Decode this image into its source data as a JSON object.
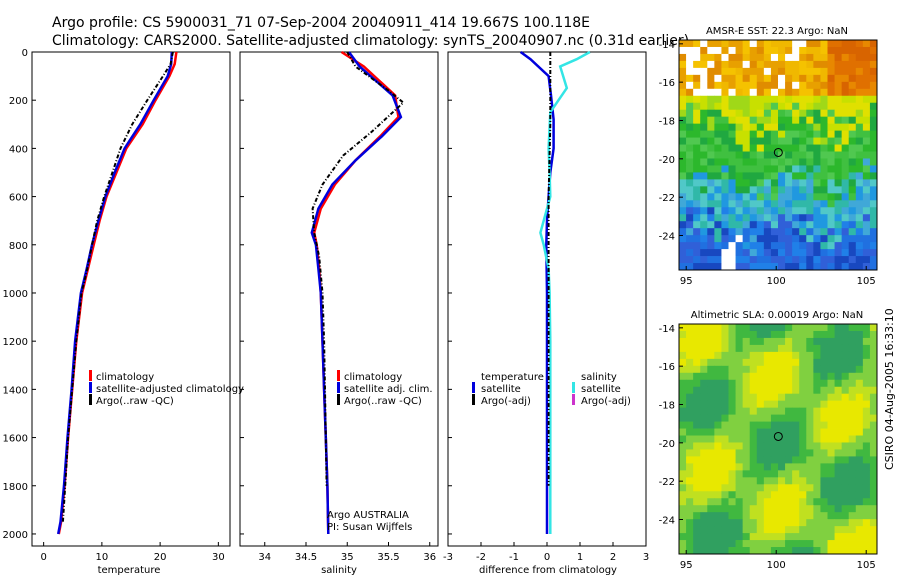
{
  "header": {
    "line1": "Argo profile: CS 5900031_71 07-Sep-2004 20040911_414 19.667S 100.118E",
    "line2": "Climatology: CARS2000. Satellite-adjusted climatology: synTS_20040907.nc (0.31d earlier)"
  },
  "side_label": "CSIRO 04-Aug-2005 16:33:10",
  "colors": {
    "climatology": "#ff0000",
    "satellite": "#0000dd",
    "argo": "#000000",
    "sal_sat": "#33e5e5",
    "sal_argo": "#cc33cc"
  },
  "chart_data": [
    {
      "type": "line",
      "id": "temperature",
      "xlabel": "temperature",
      "ylabel": "",
      "xlim": [
        -2,
        32
      ],
      "ylim": [
        2050,
        0
      ],
      "xticks": [
        0,
        10,
        20,
        30
      ],
      "yticks": [
        0,
        200,
        400,
        600,
        800,
        1000,
        1200,
        1400,
        1600,
        1800,
        2000
      ],
      "legend": [
        "climatology",
        "satellite-adjusted climatology",
        "Argo(..raw -QC)"
      ],
      "series": [
        {
          "name": "climatology",
          "color": "#ff0000",
          "dash": false,
          "x": [
            22.8,
            22.5,
            21.6,
            19.2,
            17.0,
            14.2,
            12.5,
            10.8,
            9.6,
            8.6,
            7.6,
            6.6,
            5.6,
            4.9,
            4.2,
            3.6,
            3.0,
            2.6
          ],
          "y": [
            0,
            50,
            100,
            200,
            300,
            400,
            500,
            600,
            700,
            800,
            900,
            1000,
            1200,
            1400,
            1600,
            1800,
            1950,
            2000
          ]
        },
        {
          "name": "satellite-adjusted climatology",
          "color": "#0000dd",
          "dash": false,
          "x": [
            22.0,
            21.9,
            21.3,
            18.9,
            16.6,
            13.9,
            12.2,
            10.6,
            9.4,
            8.3,
            7.4,
            6.4,
            5.4,
            4.8,
            4.1,
            3.5,
            2.9,
            2.5
          ],
          "y": [
            0,
            50,
            100,
            200,
            300,
            400,
            500,
            600,
            700,
            800,
            900,
            1000,
            1200,
            1400,
            1600,
            1800,
            1950,
            2000
          ]
        },
        {
          "name": "Argo(..raw -QC)",
          "color": "#000000",
          "dash": true,
          "x": [
            22.2,
            21.8,
            20.5,
            17.8,
            15.2,
            13.2,
            11.8,
            10.4,
            9.2,
            8.3,
            7.5,
            6.5,
            5.6,
            4.9,
            4.2,
            3.7,
            3.3
          ],
          "y": [
            0,
            50,
            100,
            200,
            300,
            400,
            500,
            600,
            700,
            800,
            900,
            1000,
            1200,
            1400,
            1600,
            1800,
            1950
          ]
        }
      ]
    },
    {
      "type": "line",
      "id": "salinity",
      "xlabel": "salinity",
      "ylabel": "",
      "xlim": [
        33.7,
        36.1
      ],
      "ylim": [
        2050,
        0
      ],
      "xticks": [
        34,
        34.5,
        35,
        35.5,
        36
      ],
      "yticks": [
        0,
        200,
        400,
        600,
        800,
        1000,
        1200,
        1400,
        1600,
        1800,
        2000
      ],
      "legend": [
        "climatology",
        "satellite adj. clim.",
        "Argo(..raw -QC)"
      ],
      "annotation": [
        "Argo AUSTRALIA",
        "PI: Susan Wijffels"
      ],
      "series": [
        {
          "name": "climatology",
          "color": "#ff0000",
          "dash": false,
          "x": [
            34.93,
            35.2,
            35.58,
            35.62,
            35.4,
            35.1,
            34.85,
            34.68,
            34.6,
            34.63,
            34.66,
            34.68,
            34.7,
            34.72,
            34.74,
            34.76,
            34.77
          ],
          "y": [
            0,
            60,
            180,
            270,
            350,
            450,
            550,
            650,
            750,
            800,
            900,
            1000,
            1200,
            1400,
            1600,
            1800,
            2000
          ]
        },
        {
          "name": "satellite adj. clim.",
          "color": "#0000dd",
          "dash": false,
          "x": [
            35.02,
            35.15,
            35.55,
            35.65,
            35.42,
            35.1,
            34.82,
            34.65,
            34.57,
            34.62,
            34.65,
            34.68,
            34.7,
            34.72,
            34.74,
            34.76,
            34.77
          ],
          "y": [
            0,
            60,
            180,
            270,
            350,
            450,
            550,
            650,
            750,
            800,
            900,
            1000,
            1200,
            1400,
            1600,
            1800,
            2000
          ]
        },
        {
          "name": "Argo(..raw -QC)",
          "color": "#000000",
          "dash": true,
          "x": [
            35.0,
            35.1,
            35.5,
            35.68,
            35.3,
            34.95,
            34.7,
            34.58,
            34.6,
            34.66,
            34.7,
            34.72,
            34.73,
            34.74,
            34.75
          ],
          "y": [
            0,
            60,
            160,
            210,
            330,
            430,
            550,
            650,
            750,
            850,
            1000,
            1200,
            1400,
            1600,
            1800
          ]
        }
      ]
    },
    {
      "type": "line",
      "id": "difference",
      "xlabel": "difference from climatology",
      "ylabel": "",
      "xlim": [
        -3,
        3
      ],
      "ylim": [
        2050,
        0
      ],
      "xticks": [
        -3,
        -2,
        -1,
        0,
        1,
        2,
        3
      ],
      "yticks": [
        0,
        200,
        400,
        600,
        800,
        1000,
        1200,
        1400,
        1600,
        1800,
        2000
      ],
      "legend_left": {
        "title": "temperature",
        "items": [
          "satellite",
          "Argo(-adj)"
        ]
      },
      "legend_right": {
        "title": "salinity",
        "items": [
          "satellite",
          "Argo(-adj)"
        ]
      },
      "series": [
        {
          "name": "temperature satellite",
          "color": "#0000dd",
          "dash": false,
          "x": [
            -0.8,
            -0.5,
            0.05,
            0.12,
            0.2,
            0.2,
            0.1,
            0.05,
            0.0,
            -0.02,
            0.0,
            0.0,
            0.0,
            0.0,
            0.0
          ],
          "y": [
            0,
            30,
            100,
            180,
            280,
            400,
            500,
            600,
            700,
            800,
            1000,
            1200,
            1400,
            1600,
            2000
          ]
        },
        {
          "name": "salinity satellite",
          "color": "#33e5e5",
          "dash": false,
          "x": [
            1.3,
            0.9,
            0.4,
            0.6,
            0.1,
            0.05,
            0.08,
            0.1,
            -0.2,
            -0.1,
            0.05,
            0.08,
            0.1,
            0.1,
            0.1
          ],
          "y": [
            0,
            30,
            60,
            150,
            250,
            400,
            500,
            600,
            750,
            800,
            900,
            1000,
            1200,
            1600,
            2000
          ]
        },
        {
          "name": "Argo(-adj)",
          "color": "#000000",
          "dash": true,
          "x": [
            0.1,
            0.1,
            0.05,
            0.05,
            0.05,
            0.05,
            0.05
          ],
          "y": [
            0,
            300,
            600,
            900,
            1200,
            1500,
            1800
          ]
        }
      ]
    },
    {
      "type": "heatmap",
      "id": "sst",
      "title": "AMSR-E SST: 22.3 Argo: NaN",
      "xlim": [
        94.6,
        105.6
      ],
      "ylim": [
        -25.8,
        -13.8
      ],
      "xticks": [
        95,
        100,
        105
      ],
      "yticks": [
        -14,
        -16,
        -18,
        -20,
        -22,
        -24
      ],
      "marker": [
        100.118,
        -19.667
      ]
    },
    {
      "type": "heatmap",
      "id": "sla",
      "title": "Altimetric SLA: 0.00019 Argo: NaN",
      "xlim": [
        94.6,
        105.6
      ],
      "ylim": [
        -25.8,
        -13.8
      ],
      "xticks": [
        95,
        100,
        105
      ],
      "yticks": [
        -14,
        -16,
        -18,
        -20,
        -22,
        -24
      ],
      "marker": [
        100.118,
        -19.667
      ]
    }
  ]
}
